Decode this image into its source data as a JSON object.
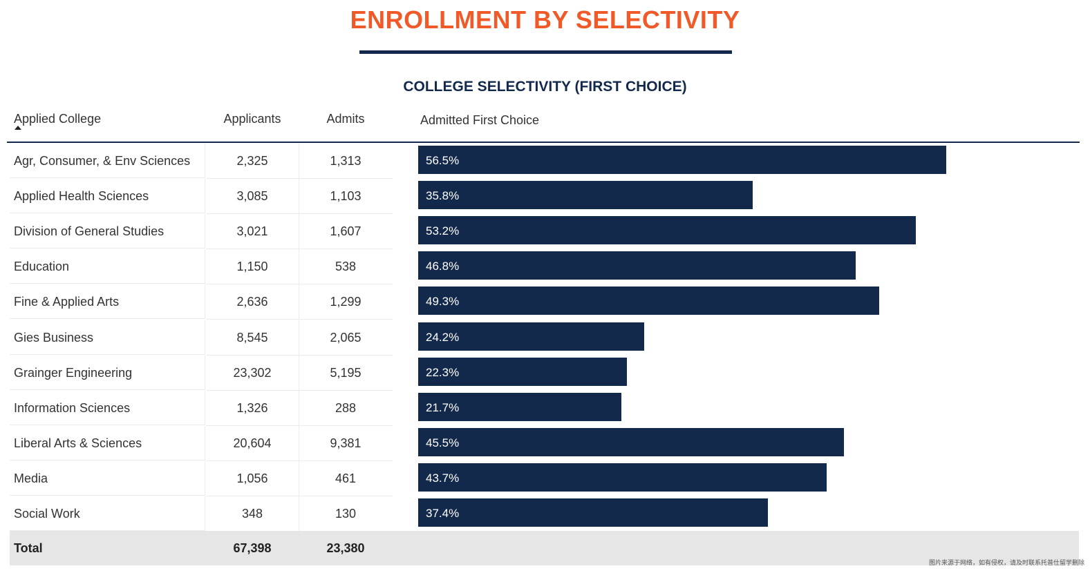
{
  "title": "ENROLLMENT BY SELECTIVITY",
  "colors": {
    "accent": "#f05a28",
    "navy": "#13294b",
    "total_bg": "#e6e6e6"
  },
  "chart_data": {
    "type": "bar",
    "orientation": "horizontal",
    "title": "COLLEGE SELECTIVITY (FIRST CHOICE)",
    "columns": {
      "college": "Applied College",
      "applicants": "Applicants",
      "admits": "Admits",
      "rate": "Admitted First Choice"
    },
    "sort_icon": "sort-ascending-icon",
    "rows": [
      {
        "college": "Agr, Consumer, & Env Sciences",
        "applicants": "2,325",
        "admits": "1,313",
        "rate": 56.5,
        "rate_label": "56.5%"
      },
      {
        "college": "Applied Health Sciences",
        "applicants": "3,085",
        "admits": "1,103",
        "rate": 35.8,
        "rate_label": "35.8%"
      },
      {
        "college": "Division of General Studies",
        "applicants": "3,021",
        "admits": "1,607",
        "rate": 53.2,
        "rate_label": "53.2%"
      },
      {
        "college": "Education",
        "applicants": "1,150",
        "admits": "538",
        "rate": 46.8,
        "rate_label": "46.8%"
      },
      {
        "college": "Fine & Applied Arts",
        "applicants": "2,636",
        "admits": "1,299",
        "rate": 49.3,
        "rate_label": "49.3%"
      },
      {
        "college": "Gies Business",
        "applicants": "8,545",
        "admits": "2,065",
        "rate": 24.2,
        "rate_label": "24.2%"
      },
      {
        "college": "Grainger Engineering",
        "applicants": "23,302",
        "admits": "5,195",
        "rate": 22.3,
        "rate_label": "22.3%"
      },
      {
        "college": "Information Sciences",
        "applicants": "1,326",
        "admits": "288",
        "rate": 21.7,
        "rate_label": "21.7%"
      },
      {
        "college": "Liberal Arts & Sciences",
        "applicants": "20,604",
        "admits": "9,381",
        "rate": 45.5,
        "rate_label": "45.5%"
      },
      {
        "college": "Media",
        "applicants": "1,056",
        "admits": "461",
        "rate": 43.7,
        "rate_label": "43.7%"
      },
      {
        "college": "Social Work",
        "applicants": "348",
        "admits": "130",
        "rate": 37.4,
        "rate_label": "37.4%"
      }
    ],
    "total": {
      "label": "Total",
      "applicants": "67,398",
      "admits": "23,380"
    },
    "xlim": [
      0,
      100
    ]
  },
  "watermark": "图片来源于网络，如有侵权，请及时联系托普仕留学删除"
}
